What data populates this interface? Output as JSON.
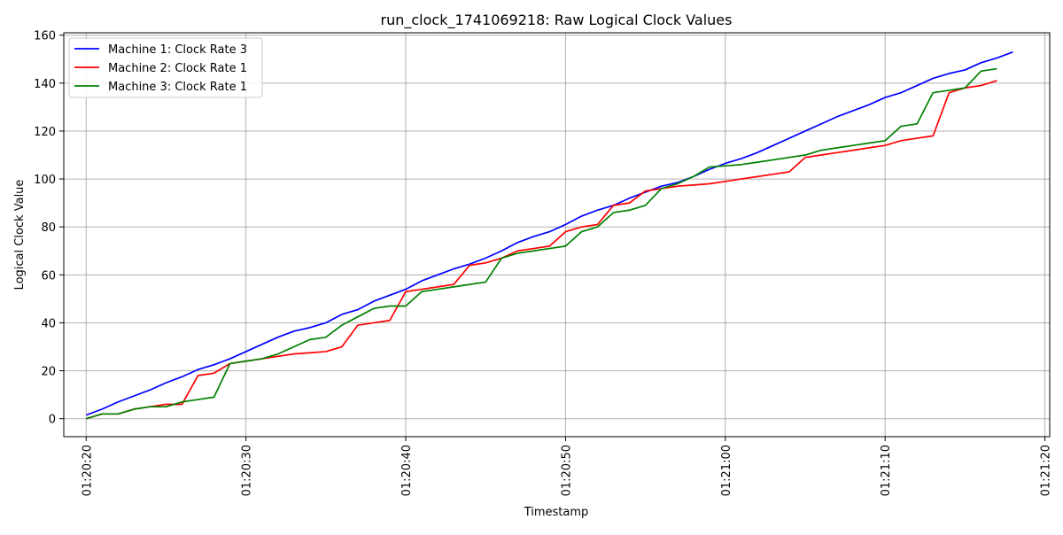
{
  "chart_data": {
    "type": "line",
    "title": "run_clock_1741069218: Raw Logical Clock Values",
    "xlabel": "Timestamp",
    "ylabel": "Logical Clock Value",
    "xlim": [
      "01:20:18.6",
      "01:21:20.3"
    ],
    "ylim": [
      -7.5,
      161
    ],
    "grid": true,
    "legend_position": "top-left",
    "x_ticks": [
      "01:20:20",
      "01:20:30",
      "01:20:40",
      "01:20:50",
      "01:21:00",
      "01:21:10",
      "01:21:20"
    ],
    "y_ticks": [
      0,
      20,
      40,
      60,
      80,
      100,
      120,
      140,
      160
    ],
    "series": [
      {
        "name": "Machine 1: Clock Rate 3",
        "color": "#0000ff",
        "points": [
          [
            "01:20:20",
            1.5
          ],
          [
            "01:20:21",
            4
          ],
          [
            "01:20:22",
            7
          ],
          [
            "01:20:23",
            9.5
          ],
          [
            "01:20:24",
            12
          ],
          [
            "01:20:25",
            15
          ],
          [
            "01:20:26",
            17.5
          ],
          [
            "01:20:27",
            20.5
          ],
          [
            "01:20:28",
            22.5
          ],
          [
            "01:20:29",
            25
          ],
          [
            "01:20:30",
            28
          ],
          [
            "01:20:31",
            31
          ],
          [
            "01:20:32",
            34
          ],
          [
            "01:20:33",
            36.5
          ],
          [
            "01:20:34",
            38
          ],
          [
            "01:20:35",
            40
          ],
          [
            "01:20:36",
            43.5
          ],
          [
            "01:20:37",
            45.5
          ],
          [
            "01:20:38",
            49
          ],
          [
            "01:20:39",
            51.5
          ],
          [
            "01:20:40",
            54
          ],
          [
            "01:20:41",
            57.5
          ],
          [
            "01:20:42",
            60
          ],
          [
            "01:20:43",
            62.5
          ],
          [
            "01:20:44",
            64.5
          ],
          [
            "01:20:45",
            67
          ],
          [
            "01:20:46",
            70
          ],
          [
            "01:20:47",
            73.5
          ],
          [
            "01:20:48",
            76
          ],
          [
            "01:20:49",
            78
          ],
          [
            "01:20:50",
            81
          ],
          [
            "01:20:51",
            84.5
          ],
          [
            "01:20:52",
            87
          ],
          [
            "01:20:53",
            89
          ],
          [
            "01:20:54",
            92
          ],
          [
            "01:20:55",
            94.5
          ],
          [
            "01:20:56",
            97
          ],
          [
            "01:20:57",
            98.5
          ],
          [
            "01:20:58",
            101
          ],
          [
            "01:20:59",
            104
          ],
          [
            "01:21:00",
            106.5
          ],
          [
            "01:21:01",
            108.5
          ],
          [
            "01:21:02",
            111
          ],
          [
            "01:21:03",
            114
          ],
          [
            "01:21:04",
            117
          ],
          [
            "01:21:05",
            120
          ],
          [
            "01:21:06",
            123
          ],
          [
            "01:21:07",
            126
          ],
          [
            "01:21:08",
            128.5
          ],
          [
            "01:21:09",
            131
          ],
          [
            "01:21:10",
            134
          ],
          [
            "01:21:11",
            136
          ],
          [
            "01:21:12",
            139
          ],
          [
            "01:21:13",
            142
          ],
          [
            "01:21:14",
            144
          ],
          [
            "01:21:15",
            145.5
          ],
          [
            "01:21:16",
            148.5
          ],
          [
            "01:21:17",
            150.5
          ],
          [
            "01:21:18",
            153
          ]
        ]
      },
      {
        "name": "Machine 2: Clock Rate 1",
        "color": "#ff0000",
        "points": [
          [
            "01:20:20",
            0
          ],
          [
            "01:20:21",
            2
          ],
          [
            "01:20:22",
            2
          ],
          [
            "01:20:23",
            4
          ],
          [
            "01:20:24",
            5
          ],
          [
            "01:20:25",
            6
          ],
          [
            "01:20:26",
            6
          ],
          [
            "01:20:27",
            18
          ],
          [
            "01:20:28",
            19
          ],
          [
            "01:20:29",
            23
          ],
          [
            "01:20:30",
            24
          ],
          [
            "01:20:31",
            25
          ],
          [
            "01:20:32",
            26
          ],
          [
            "01:20:33",
            27
          ],
          [
            "01:20:34",
            27.5
          ],
          [
            "01:20:35",
            28
          ],
          [
            "01:20:36",
            30
          ],
          [
            "01:20:37",
            39
          ],
          [
            "01:20:38",
            40
          ],
          [
            "01:20:39",
            41
          ],
          [
            "01:20:40",
            53
          ],
          [
            "01:20:41",
            54
          ],
          [
            "01:20:42",
            55
          ],
          [
            "01:20:43",
            56
          ],
          [
            "01:20:44",
            64
          ],
          [
            "01:20:45",
            65
          ],
          [
            "01:20:46",
            67
          ],
          [
            "01:20:47",
            70
          ],
          [
            "01:20:48",
            71
          ],
          [
            "01:20:49",
            72
          ],
          [
            "01:20:50",
            78
          ],
          [
            "01:20:51",
            80
          ],
          [
            "01:20:52",
            81
          ],
          [
            "01:20:53",
            89
          ],
          [
            "01:20:54",
            90
          ],
          [
            "01:20:55",
            95
          ],
          [
            "01:20:56",
            96
          ],
          [
            "01:20:57",
            97
          ],
          [
            "01:20:58",
            97.5
          ],
          [
            "01:20:59",
            98
          ],
          [
            "01:21:00",
            99
          ],
          [
            "01:21:01",
            100
          ],
          [
            "01:21:02",
            101
          ],
          [
            "01:21:03",
            102
          ],
          [
            "01:21:04",
            103
          ],
          [
            "01:21:05",
            109
          ],
          [
            "01:21:06",
            110
          ],
          [
            "01:21:07",
            111
          ],
          [
            "01:21:08",
            112
          ],
          [
            "01:21:09",
            113
          ],
          [
            "01:21:10",
            114
          ],
          [
            "01:21:11",
            116
          ],
          [
            "01:21:12",
            117
          ],
          [
            "01:21:13",
            118
          ],
          [
            "01:21:14",
            136
          ],
          [
            "01:21:15",
            138
          ],
          [
            "01:21:16",
            139
          ],
          [
            "01:21:17",
            141
          ]
        ]
      },
      {
        "name": "Machine 3: Clock Rate 1",
        "color": "#008000",
        "points": [
          [
            "01:20:20",
            0
          ],
          [
            "01:20:21",
            2
          ],
          [
            "01:20:22",
            2
          ],
          [
            "01:20:23",
            4
          ],
          [
            "01:20:24",
            5
          ],
          [
            "01:20:25",
            5
          ],
          [
            "01:20:26",
            7
          ],
          [
            "01:20:27",
            8
          ],
          [
            "01:20:28",
            9
          ],
          [
            "01:20:29",
            23
          ],
          [
            "01:20:30",
            24
          ],
          [
            "01:20:31",
            25
          ],
          [
            "01:20:32",
            27
          ],
          [
            "01:20:33",
            30
          ],
          [
            "01:20:34",
            33
          ],
          [
            "01:20:35",
            34
          ],
          [
            "01:20:36",
            39
          ],
          [
            "01:20:37",
            42.5
          ],
          [
            "01:20:38",
            46
          ],
          [
            "01:20:39",
            47
          ],
          [
            "01:20:40",
            47
          ],
          [
            "01:20:41",
            53
          ],
          [
            "01:20:42",
            54
          ],
          [
            "01:20:43",
            55
          ],
          [
            "01:20:44",
            56
          ],
          [
            "01:20:45",
            57
          ],
          [
            "01:20:46",
            67
          ],
          [
            "01:20:47",
            69
          ],
          [
            "01:20:48",
            70
          ],
          [
            "01:20:49",
            71
          ],
          [
            "01:20:50",
            72
          ],
          [
            "01:20:51",
            78
          ],
          [
            "01:20:52",
            80
          ],
          [
            "01:20:53",
            86
          ],
          [
            "01:20:54",
            87
          ],
          [
            "01:20:55",
            89
          ],
          [
            "01:20:56",
            96
          ],
          [
            "01:20:57",
            98
          ],
          [
            "01:20:58",
            101
          ],
          [
            "01:20:59",
            105
          ],
          [
            "01:21:00",
            105.5
          ],
          [
            "01:21:01",
            106
          ],
          [
            "01:21:02",
            107
          ],
          [
            "01:21:03",
            108
          ],
          [
            "01:21:04",
            109
          ],
          [
            "01:21:05",
            110
          ],
          [
            "01:21:06",
            112
          ],
          [
            "01:21:07",
            113
          ],
          [
            "01:21:08",
            114
          ],
          [
            "01:21:09",
            115
          ],
          [
            "01:21:10",
            116
          ],
          [
            "01:21:11",
            122
          ],
          [
            "01:21:12",
            123
          ],
          [
            "01:21:13",
            136
          ],
          [
            "01:21:14",
            137
          ],
          [
            "01:21:15",
            138
          ],
          [
            "01:21:16",
            145
          ],
          [
            "01:21:17",
            146
          ]
        ]
      }
    ]
  }
}
